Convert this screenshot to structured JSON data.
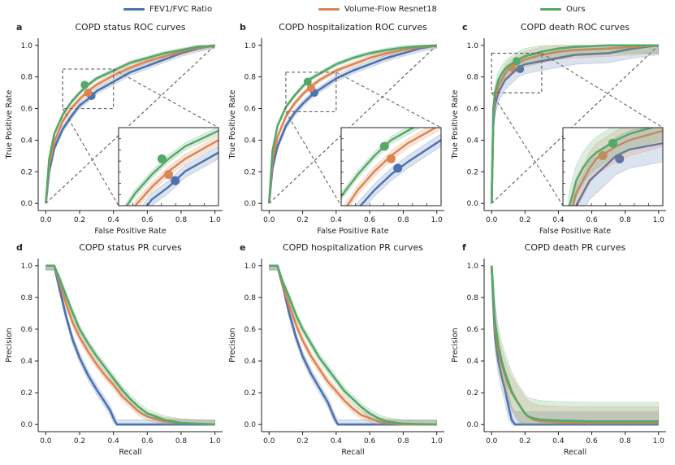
{
  "legend": [
    {
      "label": "FEV1/FVC Ratio",
      "color": "#4c72b0"
    },
    {
      "label": "Volume-Flow Resnet18",
      "color": "#dd8452"
    },
    {
      "label": "Ours",
      "color": "#55a868"
    }
  ],
  "chart_data": [
    {
      "panel": "a",
      "type": "line",
      "kind": "roc",
      "title": "COPD status ROC curves",
      "xlabel": "False Positive Rate",
      "ylabel": "True Positive Rate",
      "xlim": [
        0,
        1
      ],
      "ylim": [
        0,
        1
      ],
      "xticks": [
        "0.0",
        "0.2",
        "0.4",
        "0.6",
        "0.8",
        "1.0"
      ],
      "yticks": [
        "0.0",
        "0.2",
        "0.4",
        "0.6",
        "0.8",
        "1.0"
      ],
      "diagonal": true,
      "series": [
        {
          "name": "FEV1/FVC Ratio",
          "x": [
            0,
            0.02,
            0.05,
            0.1,
            0.15,
            0.2,
            0.25,
            0.3,
            0.4,
            0.5,
            0.6,
            0.7,
            0.8,
            0.9,
            1.0
          ],
          "y": [
            0,
            0.2,
            0.35,
            0.47,
            0.55,
            0.62,
            0.66,
            0.71,
            0.77,
            0.83,
            0.87,
            0.91,
            0.95,
            0.98,
            1.0
          ],
          "band": 0.02,
          "point": [
            0.27,
            0.68
          ]
        },
        {
          "name": "Volume-Flow Resnet18",
          "x": [
            0,
            0.02,
            0.05,
            0.1,
            0.15,
            0.2,
            0.25,
            0.3,
            0.4,
            0.5,
            0.6,
            0.7,
            0.8,
            0.9,
            1.0
          ],
          "y": [
            0,
            0.24,
            0.39,
            0.52,
            0.6,
            0.66,
            0.71,
            0.75,
            0.81,
            0.86,
            0.9,
            0.93,
            0.96,
            0.985,
            1.0
          ],
          "band": 0.015,
          "point": [
            0.25,
            0.7
          ]
        },
        {
          "name": "Ours",
          "x": [
            0,
            0.02,
            0.05,
            0.1,
            0.15,
            0.2,
            0.25,
            0.3,
            0.4,
            0.5,
            0.6,
            0.7,
            0.8,
            0.9,
            1.0
          ],
          "y": [
            0,
            0.28,
            0.44,
            0.56,
            0.64,
            0.7,
            0.75,
            0.79,
            0.84,
            0.89,
            0.92,
            0.95,
            0.97,
            0.99,
            1.0
          ],
          "band": 0.012,
          "point": [
            0.23,
            0.75
          ]
        }
      ],
      "zoom_box": {
        "x": [
          0.1,
          0.4
        ],
        "y": [
          0.6,
          0.85
        ]
      }
    },
    {
      "panel": "b",
      "type": "line",
      "kind": "roc",
      "title": "COPD hospitalization ROC curves",
      "xlabel": "False Positive Rate",
      "ylabel": "True Positive Rate",
      "xlim": [
        0,
        1
      ],
      "ylim": [
        0,
        1
      ],
      "xticks": [
        "0.0",
        "0.2",
        "0.4",
        "0.6",
        "0.8",
        "1.0"
      ],
      "yticks": [
        "0.0",
        "0.2",
        "0.4",
        "0.6",
        "0.8",
        "1.0"
      ],
      "diagonal": true,
      "series": [
        {
          "name": "FEV1/FVC Ratio",
          "x": [
            0,
            0.02,
            0.05,
            0.1,
            0.15,
            0.2,
            0.25,
            0.3,
            0.4,
            0.5,
            0.6,
            0.7,
            0.8,
            0.9,
            1.0
          ],
          "y": [
            0,
            0.22,
            0.36,
            0.49,
            0.57,
            0.63,
            0.68,
            0.72,
            0.79,
            0.84,
            0.88,
            0.92,
            0.95,
            0.98,
            1.0
          ],
          "band": 0.02,
          "point": [
            0.27,
            0.7
          ]
        },
        {
          "name": "Volume-Flow Resnet18",
          "x": [
            0,
            0.02,
            0.05,
            0.1,
            0.15,
            0.2,
            0.25,
            0.3,
            0.4,
            0.5,
            0.6,
            0.7,
            0.8,
            0.9,
            1.0
          ],
          "y": [
            0,
            0.27,
            0.42,
            0.55,
            0.63,
            0.69,
            0.74,
            0.78,
            0.84,
            0.88,
            0.92,
            0.95,
            0.97,
            0.99,
            1.0
          ],
          "band": 0.015,
          "point": [
            0.25,
            0.73
          ]
        },
        {
          "name": "Ours",
          "x": [
            0,
            0.02,
            0.05,
            0.1,
            0.15,
            0.2,
            0.25,
            0.3,
            0.4,
            0.5,
            0.6,
            0.7,
            0.8,
            0.9,
            1.0
          ],
          "y": [
            0,
            0.33,
            0.49,
            0.61,
            0.68,
            0.74,
            0.79,
            0.82,
            0.88,
            0.92,
            0.95,
            0.97,
            0.985,
            0.995,
            1.0
          ],
          "band": 0.012,
          "point": [
            0.23,
            0.77
          ]
        }
      ],
      "zoom_box": {
        "x": [
          0.1,
          0.4
        ],
        "y": [
          0.58,
          0.83
        ]
      }
    },
    {
      "panel": "c",
      "type": "line",
      "kind": "roc",
      "title": "COPD death ROC curves",
      "xlabel": "False Positive Rate",
      "ylabel": "True Positive Rate",
      "xlim": [
        0,
        1
      ],
      "ylim": [
        0,
        1
      ],
      "xticks": [
        "0.0",
        "0.2",
        "0.4",
        "0.6",
        "0.8",
        "1.0"
      ],
      "yticks": [
        "0.0",
        "0.2",
        "0.4",
        "0.6",
        "0.8",
        "1.0"
      ],
      "diagonal": true,
      "series": [
        {
          "name": "FEV1/FVC Ratio",
          "x": [
            0,
            0.01,
            0.02,
            0.04,
            0.06,
            0.08,
            0.1,
            0.13,
            0.16,
            0.2,
            0.3,
            0.4,
            0.5,
            0.7,
            0.85,
            1.0
          ],
          "y": [
            0,
            0.5,
            0.62,
            0.7,
            0.74,
            0.78,
            0.8,
            0.83,
            0.86,
            0.88,
            0.9,
            0.92,
            0.94,
            0.95,
            0.98,
            1.0
          ],
          "band": 0.06,
          "point": [
            0.17,
            0.85
          ]
        },
        {
          "name": "Volume-Flow Resnet18",
          "x": [
            0,
            0.01,
            0.02,
            0.04,
            0.06,
            0.08,
            0.1,
            0.13,
            0.16,
            0.2,
            0.3,
            0.4,
            0.5,
            0.7,
            0.85,
            1.0
          ],
          "y": [
            0,
            0.55,
            0.66,
            0.74,
            0.78,
            0.82,
            0.85,
            0.87,
            0.89,
            0.91,
            0.94,
            0.96,
            0.97,
            0.98,
            0.99,
            1.0
          ],
          "band": 0.05,
          "point": [
            0.12,
            0.86
          ]
        },
        {
          "name": "Ours",
          "x": [
            0,
            0.01,
            0.02,
            0.04,
            0.06,
            0.08,
            0.1,
            0.13,
            0.16,
            0.2,
            0.3,
            0.4,
            0.5,
            0.7,
            0.85,
            1.0
          ],
          "y": [
            0,
            0.6,
            0.7,
            0.78,
            0.82,
            0.85,
            0.87,
            0.89,
            0.91,
            0.93,
            0.96,
            0.98,
            0.99,
            1.0,
            1.0,
            1.0
          ],
          "band": 0.05,
          "point": [
            0.15,
            0.9
          ]
        }
      ],
      "zoom_box": {
        "x": [
          0.0,
          0.3
        ],
        "y": [
          0.7,
          0.95
        ]
      }
    },
    {
      "panel": "d",
      "type": "line",
      "kind": "pr",
      "title": "COPD status PR curves",
      "xlabel": "Recall",
      "ylabel": "Precision",
      "xlim": [
        0,
        1
      ],
      "ylim": [
        0,
        1
      ],
      "xticks": [
        "0.0",
        "0.2",
        "0.4",
        "0.6",
        "0.8",
        "1.0"
      ],
      "yticks": [
        "0.0",
        "0.2",
        "0.4",
        "0.6",
        "0.8",
        "1.0"
      ],
      "series": [
        {
          "name": "FEV1/FVC Ratio",
          "x": [
            0,
            0.05,
            0.08,
            0.12,
            0.16,
            0.2,
            0.25,
            0.3,
            0.35,
            0.38,
            0.4,
            0.42,
            0.5,
            1.0
          ],
          "y": [
            1.0,
            1.0,
            0.86,
            0.68,
            0.53,
            0.42,
            0.31,
            0.22,
            0.14,
            0.09,
            0.04,
            0.0,
            0.0,
            0.0
          ],
          "band": 0.03
        },
        {
          "name": "Volume-Flow Resnet18",
          "x": [
            0,
            0.05,
            0.08,
            0.12,
            0.16,
            0.2,
            0.25,
            0.3,
            0.35,
            0.4,
            0.45,
            0.5,
            0.55,
            0.6,
            0.7,
            0.8,
            1.0
          ],
          "y": [
            1.0,
            1.0,
            0.9,
            0.76,
            0.64,
            0.55,
            0.46,
            0.38,
            0.31,
            0.25,
            0.18,
            0.13,
            0.08,
            0.05,
            0.02,
            0.01,
            0.0
          ],
          "band": 0.025
        },
        {
          "name": "Ours",
          "x": [
            0,
            0.05,
            0.08,
            0.12,
            0.16,
            0.2,
            0.25,
            0.3,
            0.35,
            0.4,
            0.45,
            0.5,
            0.55,
            0.6,
            0.7,
            0.8,
            1.0
          ],
          "y": [
            1.0,
            1.0,
            0.92,
            0.81,
            0.7,
            0.6,
            0.51,
            0.43,
            0.36,
            0.29,
            0.22,
            0.16,
            0.11,
            0.07,
            0.03,
            0.01,
            0.0
          ],
          "band": 0.025
        }
      ]
    },
    {
      "panel": "e",
      "type": "line",
      "kind": "pr",
      "title": "COPD hospitalization PR curves",
      "xlabel": "Recall",
      "ylabel": "Precision",
      "xlim": [
        0,
        1
      ],
      "ylim": [
        0,
        1
      ],
      "xticks": [
        "0.0",
        "0.2",
        "0.4",
        "0.6",
        "0.8",
        "1.0"
      ],
      "yticks": [
        "0.0",
        "0.2",
        "0.4",
        "0.6",
        "0.8",
        "1.0"
      ],
      "series": [
        {
          "name": "FEV1/FVC Ratio",
          "x": [
            0,
            0.05,
            0.08,
            0.12,
            0.16,
            0.2,
            0.25,
            0.3,
            0.35,
            0.37,
            0.39,
            0.41,
            0.5,
            1.0
          ],
          "y": [
            1.0,
            1.0,
            0.88,
            0.7,
            0.55,
            0.43,
            0.32,
            0.23,
            0.14,
            0.09,
            0.04,
            0.0,
            0.0,
            0.0
          ],
          "band": 0.03
        },
        {
          "name": "Volume-Flow Resnet18",
          "x": [
            0,
            0.05,
            0.08,
            0.12,
            0.16,
            0.2,
            0.25,
            0.3,
            0.35,
            0.4,
            0.45,
            0.5,
            0.55,
            0.6,
            0.65,
            0.7,
            0.8,
            1.0
          ],
          "y": [
            1.0,
            1.0,
            0.88,
            0.75,
            0.63,
            0.53,
            0.43,
            0.35,
            0.27,
            0.21,
            0.15,
            0.1,
            0.06,
            0.04,
            0.02,
            0.01,
            0.0,
            0.0
          ],
          "band": 0.025
        },
        {
          "name": "Ours",
          "x": [
            0,
            0.05,
            0.08,
            0.12,
            0.16,
            0.2,
            0.25,
            0.3,
            0.35,
            0.4,
            0.45,
            0.5,
            0.55,
            0.6,
            0.65,
            0.7,
            0.8,
            1.0
          ],
          "y": [
            1.0,
            1.0,
            0.9,
            0.8,
            0.69,
            0.6,
            0.51,
            0.42,
            0.35,
            0.28,
            0.21,
            0.16,
            0.11,
            0.07,
            0.04,
            0.02,
            0.005,
            0.0
          ],
          "band": 0.025
        }
      ]
    },
    {
      "panel": "f",
      "type": "line",
      "kind": "pr",
      "title": "COPD death PR curves",
      "xlabel": "Recall",
      "ylabel": "Precision",
      "xlim": [
        0,
        1
      ],
      "ylim": [
        0,
        1
      ],
      "xticks": [
        "0.0",
        "0.2",
        "0.4",
        "0.6",
        "0.8",
        "1.0"
      ],
      "yticks": [
        "0.0",
        "0.2",
        "0.4",
        "0.6",
        "0.8",
        "1.0"
      ],
      "series": [
        {
          "name": "FEV1/FVC Ratio",
          "x": [
            0,
            0.01,
            0.02,
            0.04,
            0.06,
            0.08,
            0.1,
            0.12,
            0.14,
            0.2,
            1.0
          ],
          "y": [
            1.0,
            0.75,
            0.55,
            0.4,
            0.3,
            0.22,
            0.12,
            0.03,
            0.0,
            0.0,
            0.0
          ],
          "band": 0.08
        },
        {
          "name": "Volume-Flow Resnet18",
          "x": [
            0,
            0.01,
            0.02,
            0.04,
            0.06,
            0.08,
            0.1,
            0.12,
            0.15,
            0.18,
            0.2,
            0.22,
            0.25,
            0.3,
            0.4,
            0.6,
            1.0
          ],
          "y": [
            1.0,
            0.8,
            0.62,
            0.47,
            0.38,
            0.31,
            0.25,
            0.2,
            0.15,
            0.1,
            0.07,
            0.05,
            0.03,
            0.02,
            0.015,
            0.01,
            0.01
          ],
          "band": 0.1
        },
        {
          "name": "Ours",
          "x": [
            0,
            0.01,
            0.02,
            0.04,
            0.06,
            0.08,
            0.1,
            0.12,
            0.15,
            0.18,
            0.2,
            0.22,
            0.25,
            0.3,
            0.4,
            0.6,
            1.0
          ],
          "y": [
            1.0,
            0.82,
            0.65,
            0.5,
            0.4,
            0.33,
            0.27,
            0.21,
            0.15,
            0.1,
            0.07,
            0.05,
            0.04,
            0.03,
            0.025,
            0.02,
            0.02
          ],
          "band": 0.12
        }
      ]
    }
  ]
}
